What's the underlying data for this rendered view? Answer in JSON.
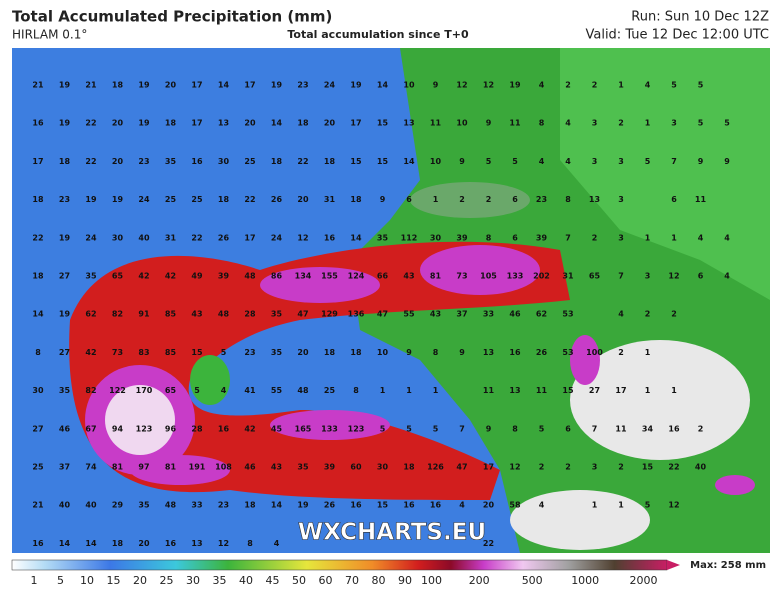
{
  "header": {
    "title": "Total Accumulated Precipitation (mm)",
    "model": "HIRLAM 0.1°",
    "subtitle": "Total accumulation since T+0",
    "run": "Run: Sun 10 Dec 12Z",
    "valid": "Valid: Tue 12 Dec 12:00 UTC"
  },
  "watermark": "WXCHARTS.EU",
  "grid": {
    "rows": [
      [
        21,
        19,
        21,
        18,
        19,
        20,
        17,
        14,
        17,
        19,
        23,
        24,
        19,
        14,
        10,
        9,
        12,
        12,
        19,
        4,
        2,
        2,
        1,
        4,
        5,
        5,
        null
      ],
      [
        16,
        19,
        22,
        20,
        19,
        18,
        17,
        13,
        20,
        14,
        18,
        20,
        17,
        15,
        13,
        11,
        10,
        9,
        11,
        8,
        4,
        3,
        2,
        1,
        3,
        5,
        5
      ],
      [
        17,
        18,
        22,
        20,
        23,
        35,
        16,
        30,
        25,
        18,
        22,
        18,
        15,
        15,
        14,
        10,
        9,
        5,
        5,
        4,
        4,
        3,
        3,
        5,
        7,
        9,
        9
      ],
      [
        18,
        23,
        19,
        19,
        24,
        25,
        25,
        18,
        22,
        26,
        20,
        31,
        18,
        9,
        6,
        1,
        2,
        2,
        6,
        23,
        8,
        13,
        3,
        null,
        6,
        11,
        null
      ],
      [
        22,
        19,
        24,
        30,
        40,
        31,
        22,
        26,
        17,
        24,
        12,
        16,
        14,
        35,
        112,
        30,
        39,
        8,
        6,
        39,
        7,
        2,
        3,
        1,
        1,
        4,
        4
      ],
      [
        18,
        27,
        35,
        65,
        42,
        42,
        49,
        39,
        48,
        86,
        134,
        155,
        124,
        66,
        43,
        81,
        73,
        105,
        133,
        202,
        31,
        65,
        7,
        3,
        12,
        6,
        4
      ],
      [
        14,
        19,
        62,
        82,
        91,
        85,
        43,
        48,
        28,
        35,
        47,
        129,
        136,
        47,
        55,
        43,
        37,
        33,
        46,
        62,
        53,
        null,
        4,
        2,
        2,
        null,
        null
      ],
      [
        8,
        27,
        42,
        73,
        83,
        85,
        15,
        5,
        23,
        35,
        20,
        18,
        18,
        10,
        9,
        8,
        9,
        13,
        16,
        26,
        53,
        100,
        2,
        1,
        null,
        null,
        null
      ],
      [
        30,
        35,
        82,
        122,
        170,
        65,
        5,
        4,
        41,
        55,
        48,
        25,
        8,
        1,
        1,
        1,
        null,
        11,
        13,
        11,
        15,
        27,
        17,
        1,
        1,
        null,
        null
      ],
      [
        27,
        46,
        67,
        94,
        123,
        96,
        28,
        16,
        42,
        45,
        165,
        133,
        123,
        5,
        5,
        5,
        7,
        9,
        8,
        5,
        6,
        7,
        11,
        34,
        16,
        2,
        null
      ],
      [
        25,
        37,
        74,
        81,
        97,
        81,
        191,
        108,
        46,
        43,
        35,
        39,
        60,
        30,
        18,
        126,
        47,
        17,
        12,
        2,
        2,
        3,
        2,
        15,
        22,
        40,
        null
      ],
      [
        21,
        40,
        40,
        29,
        35,
        48,
        33,
        23,
        18,
        14,
        19,
        26,
        16,
        15,
        16,
        16,
        4,
        20,
        58,
        4,
        null,
        1,
        1,
        5,
        12,
        null,
        null
      ],
      [
        16,
        14,
        14,
        18,
        20,
        16,
        13,
        12,
        8,
        4,
        null,
        null,
        null,
        null,
        null,
        null,
        null,
        22,
        null,
        null,
        null,
        null,
        null,
        null,
        null,
        null,
        null
      ]
    ]
  },
  "legend": {
    "labels": [
      1,
      5,
      10,
      15,
      20,
      25,
      30,
      35,
      40,
      45,
      50,
      60,
      70,
      80,
      90,
      100,
      200,
      500,
      1000,
      2000
    ],
    "max": "Max: 258 mm"
  }
}
